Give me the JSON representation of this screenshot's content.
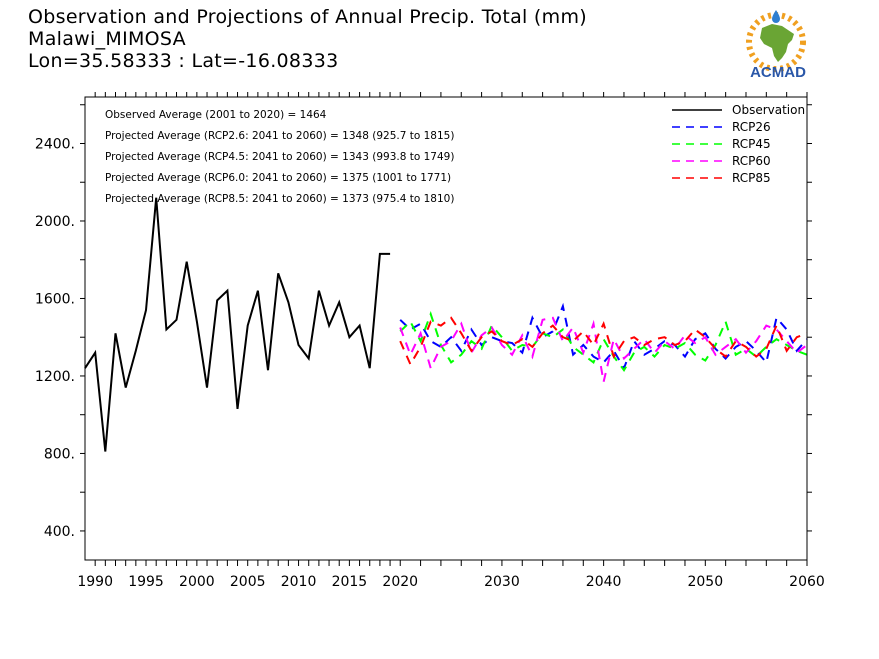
{
  "header": {
    "title_line1": "Observation and Projections of Annual Precip. Total (mm)",
    "title_line2": "Malawi_MIMOSA",
    "title_line3": "Lon=35.58333 : Lat=-16.08333"
  },
  "logo": {
    "text": "ACMAD",
    "colors": {
      "africa": "#6aa534",
      "rays": "#f0a020",
      "drop": "#2f7fd0",
      "text": "#2a57a8"
    }
  },
  "chart_data": {
    "type": "line",
    "xlim": [
      1989,
      2060
    ],
    "ylim": [
      250,
      2640
    ],
    "x_ticks": [
      {
        "x": 1990,
        "label": "1990"
      },
      {
        "x": 1995,
        "label": "1995"
      },
      {
        "x": 2000,
        "label": "2000"
      },
      {
        "x": 2005,
        "label": "2005"
      },
      {
        "x": 2010,
        "label": "2010"
      },
      {
        "x": 2015,
        "label": "2015"
      },
      {
        "x": 2020,
        "label": "2020"
      },
      {
        "x": 2030,
        "label": "2030"
      },
      {
        "x": 2040,
        "label": "2040"
      },
      {
        "x": 2050,
        "label": "2050"
      },
      {
        "x": 2060,
        "label": "2060"
      }
    ],
    "y_ticks": [
      {
        "y": 400,
        "label": "400."
      },
      {
        "y": 800,
        "label": "800."
      },
      {
        "y": 1200,
        "label": "1200."
      },
      {
        "y": 1600,
        "label": "1600."
      },
      {
        "y": 2000,
        "label": "2000."
      },
      {
        "y": 2400,
        "label": "2400."
      }
    ],
    "annotations": [
      "Observed Average (2001 to 2020) = 1464",
      "Projected Average (RCP2.6: 2041 to 2060) = 1348 (925.7 to 1815)",
      "Projected Average (RCP4.5: 2041 to 2060) = 1343 (993.8 to 1749)",
      "Projected Average (RCP6.0: 2041 to 2060) = 1375 (1001 to 1771)",
      "Projected Average (RCP8.5: 2041 to 2060) = 1373 (975.4 to 1810)"
    ],
    "legend_position": "top-right",
    "series": [
      {
        "name": "Observation",
        "color": "#000000",
        "dash": "solid",
        "x": [
          1989,
          1990,
          1991,
          1992,
          1993,
          1994,
          1995,
          1996,
          1997,
          1998,
          1999,
          2000,
          2001,
          2002,
          2003,
          2004,
          2005,
          2006,
          2007,
          2008,
          2009,
          2010,
          2011,
          2012,
          2013,
          2014,
          2015,
          2016,
          2017,
          2018,
          2019
        ],
        "y": [
          1240,
          1320,
          810,
          1420,
          1140,
          1330,
          1540,
          2120,
          1440,
          1490,
          1790,
          1480,
          1140,
          1590,
          1640,
          1030,
          1460,
          1640,
          1230,
          1730,
          1580,
          1360,
          1290,
          1640,
          1460,
          1580,
          1400,
          1460,
          1240,
          1830,
          1830
        ]
      },
      {
        "name": "RCP26",
        "color": "#0000ff",
        "dash": "dashed",
        "x": [
          2020,
          2021,
          2022,
          2023,
          2024,
          2025,
          2026,
          2027,
          2028,
          2029,
          2030,
          2031,
          2032,
          2033,
          2034,
          2035,
          2036,
          2037,
          2038,
          2039,
          2040,
          2041,
          2042,
          2043,
          2044,
          2045,
          2046,
          2047,
          2048,
          2049,
          2050,
          2051,
          2052,
          2053,
          2054,
          2055,
          2056,
          2057,
          2058,
          2059,
          2060
        ],
        "y": [
          1490,
          1440,
          1470,
          1380,
          1350,
          1400,
          1330,
          1440,
          1360,
          1400,
          1380,
          1370,
          1320,
          1500,
          1400,
          1430,
          1560,
          1310,
          1360,
          1300,
          1270,
          1330,
          1240,
          1380,
          1310,
          1340,
          1380,
          1360,
          1300,
          1390,
          1420,
          1340,
          1290,
          1350,
          1380,
          1330,
          1270,
          1500,
          1440,
          1330,
          1390
        ]
      },
      {
        "name": "RCP45",
        "color": "#00ff00",
        "dash": "dashed",
        "x": [
          2020,
          2021,
          2022,
          2023,
          2024,
          2025,
          2026,
          2027,
          2028,
          2029,
          2030,
          2031,
          2032,
          2033,
          2034,
          2035,
          2036,
          2037,
          2038,
          2039,
          2040,
          2041,
          2042,
          2043,
          2044,
          2045,
          2046,
          2047,
          2048,
          2049,
          2050,
          2051,
          2052,
          2053,
          2054,
          2055,
          2056,
          2057,
          2058,
          2059,
          2060
        ],
        "y": [
          1430,
          1480,
          1380,
          1520,
          1360,
          1270,
          1310,
          1380,
          1340,
          1460,
          1400,
          1330,
          1360,
          1350,
          1420,
          1400,
          1440,
          1350,
          1310,
          1270,
          1390,
          1300,
          1230,
          1320,
          1350,
          1300,
          1360,
          1340,
          1370,
          1310,
          1280,
          1360,
          1480,
          1310,
          1340,
          1300,
          1350,
          1390,
          1360,
          1330,
          1310
        ]
      },
      {
        "name": "RCP60",
        "color": "#ff00ff",
        "dash": "dashed",
        "x": [
          2020,
          2021,
          2022,
          2023,
          2024,
          2025,
          2026,
          2027,
          2028,
          2029,
          2030,
          2031,
          2032,
          2033,
          2034,
          2035,
          2036,
          2037,
          2038,
          2039,
          2040,
          2041,
          2042,
          2043,
          2044,
          2045,
          2046,
          2047,
          2048,
          2049,
          2050,
          2051,
          2052,
          2053,
          2054,
          2055,
          2056,
          2057,
          2058,
          2059,
          2060
        ],
        "y": [
          1450,
          1310,
          1420,
          1240,
          1350,
          1380,
          1470,
          1320,
          1410,
          1450,
          1360,
          1310,
          1410,
          1300,
          1490,
          1500,
          1380,
          1450,
          1320,
          1470,
          1170,
          1390,
          1290,
          1340,
          1390,
          1320,
          1380,
          1340,
          1410,
          1370,
          1400,
          1310,
          1350,
          1390,
          1320,
          1380,
          1460,
          1440,
          1380,
          1320,
          1360
        ]
      },
      {
        "name": "RCP85",
        "color": "#ff0000",
        "dash": "dashed",
        "x": [
          2020,
          2021,
          2022,
          2023,
          2024,
          2025,
          2026,
          2027,
          2028,
          2029,
          2030,
          2031,
          2032,
          2033,
          2034,
          2035,
          2036,
          2037,
          2038,
          2039,
          2040,
          2041,
          2042,
          2043,
          2044,
          2045,
          2046,
          2047,
          2048,
          2049,
          2050,
          2051,
          2052,
          2053,
          2054,
          2055,
          2056,
          2057,
          2058,
          2059,
          2060
        ],
        "y": [
          1380,
          1260,
          1350,
          1480,
          1460,
          1500,
          1420,
          1330,
          1400,
          1430,
          1380,
          1360,
          1390,
          1350,
          1420,
          1460,
          1400,
          1380,
          1430,
          1360,
          1470,
          1300,
          1380,
          1400,
          1360,
          1390,
          1400,
          1360,
          1380,
          1440,
          1400,
          1340,
          1300,
          1380,
          1350,
          1300,
          1340,
          1460,
          1330,
          1400,
          1420
        ]
      }
    ]
  }
}
